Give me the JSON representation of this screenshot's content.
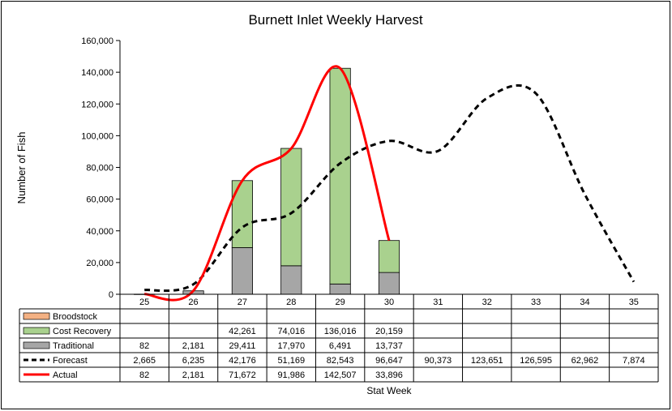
{
  "chart_data": {
    "type": "bar",
    "title": "Burnett Inlet Weekly Harvest",
    "xlabel": "Stat Week",
    "ylabel": "Number of Fish",
    "ylim": [
      0,
      160000
    ],
    "yticks": [
      0,
      20000,
      40000,
      60000,
      80000,
      100000,
      120000,
      140000,
      160000
    ],
    "ytick_labels": [
      "0",
      "20,000",
      "40,000",
      "60,000",
      "80,000",
      "100,000",
      "120,000",
      "140,000",
      "160,000"
    ],
    "categories": [
      "25",
      "26",
      "27",
      "28",
      "29",
      "30",
      "31",
      "32",
      "33",
      "34",
      "35"
    ],
    "stacked": true,
    "grid": false,
    "legend": "data-table",
    "series": [
      {
        "name": "Broodstock",
        "kind": "bar",
        "color": "#f4b183",
        "values": [
          null,
          null,
          null,
          null,
          null,
          null,
          null,
          null,
          null,
          null,
          null
        ],
        "labels": [
          "",
          "",
          "",
          "",
          "",
          "",
          "",
          "",
          "",
          "",
          ""
        ]
      },
      {
        "name": "Cost Recovery",
        "kind": "bar",
        "color": "#a9d18e",
        "values": [
          null,
          null,
          42261,
          74016,
          136016,
          20159,
          null,
          null,
          null,
          null,
          null
        ],
        "labels": [
          "",
          "",
          "42,261",
          "74,016",
          "136,016",
          "20,159",
          "",
          "",
          "",
          "",
          ""
        ]
      },
      {
        "name": "Traditional",
        "kind": "bar",
        "color": "#a6a6a6",
        "values": [
          82,
          2181,
          29411,
          17970,
          6491,
          13737,
          null,
          null,
          null,
          null,
          null
        ],
        "labels": [
          "82",
          "2,181",
          "29,411",
          "17,970",
          "6,491",
          "13,737",
          "",
          "",
          "",
          "",
          ""
        ]
      },
      {
        "name": "Forecast",
        "kind": "line",
        "style": "dashed",
        "color": "#000000",
        "values": [
          2665,
          6235,
          42176,
          51169,
          82543,
          96647,
          90373,
          123651,
          126595,
          62962,
          7874
        ],
        "labels": [
          "2,665",
          "6,235",
          "42,176",
          "51,169",
          "82,543",
          "96,647",
          "90,373",
          "123,651",
          "126,595",
          "62,962",
          "7,874"
        ]
      },
      {
        "name": "Actual",
        "kind": "line",
        "style": "solid",
        "color": "#ff0000",
        "values": [
          82,
          2181,
          71672,
          91986,
          142507,
          33896,
          null,
          null,
          null,
          null,
          null
        ],
        "labels": [
          "82",
          "2,181",
          "71,672",
          "91,986",
          "142,507",
          "33,896",
          "",
          "",
          "",
          "",
          ""
        ]
      }
    ]
  }
}
